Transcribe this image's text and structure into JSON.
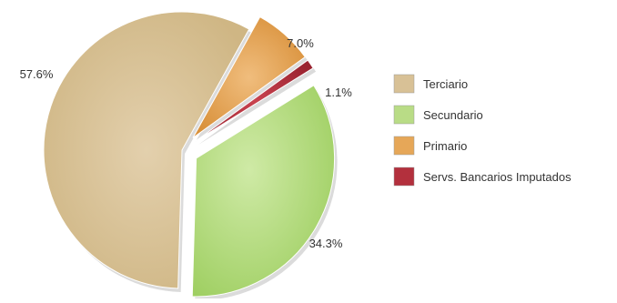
{
  "chart_data": {
    "type": "pie",
    "categories": [
      "Terciario",
      "Secundario",
      "Primario",
      "Servs. Bancarios Imputados"
    ],
    "values": [
      57.6,
      34.3,
      7.0,
      1.1
    ],
    "value_labels": [
      "57.6%",
      "34.3%",
      "7.0%",
      "1.1%"
    ],
    "colors": [
      "#d8c196",
      "#b9dc86",
      "#e6a758",
      "#b3303d"
    ],
    "exploded": [
      false,
      true,
      true,
      true
    ],
    "legend_position": "right"
  }
}
